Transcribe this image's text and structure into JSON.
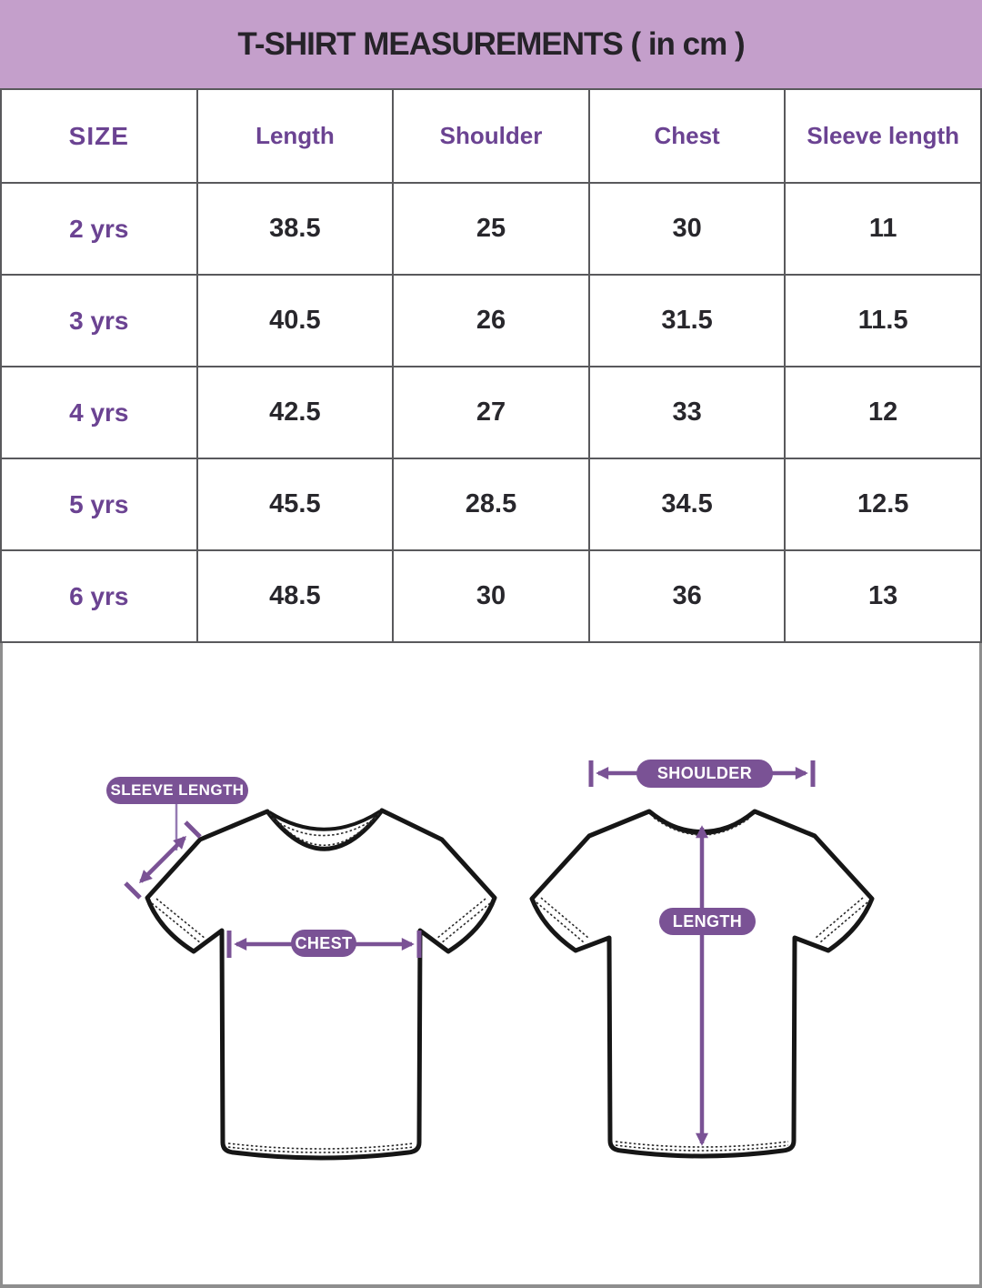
{
  "banner": {
    "title": "T-SHIRT MEASUREMENTS ( in cm )"
  },
  "table": {
    "columns": [
      "SIZE",
      "Length",
      "Shoulder",
      "Chest",
      "Sleeve length"
    ],
    "rows": [
      {
        "label": "2 yrs",
        "values": [
          "38.5",
          "25",
          "30",
          "11"
        ]
      },
      {
        "label": "3 yrs",
        "values": [
          "40.5",
          "26",
          "31.5",
          "11.5"
        ]
      },
      {
        "label": "4 yrs",
        "values": [
          "42.5",
          "27",
          "33",
          "12"
        ]
      },
      {
        "label": "5 yrs",
        "values": [
          "45.5",
          "28.5",
          "34.5",
          "12.5"
        ]
      },
      {
        "label": "6 yrs",
        "values": [
          "48.5",
          "30",
          "36",
          "13"
        ]
      }
    ]
  },
  "diagram": {
    "front": {
      "sleeve_length_label": "SLEEVE LENGTH",
      "chest_label": "CHEST"
    },
    "back": {
      "shoulder_label": "SHOULDER",
      "length_label": "LENGTH"
    }
  },
  "colors": {
    "banner_bg": "#C49FCB",
    "heading_text": "#6B4392",
    "value_text": "#28272C",
    "accent_purple": "#7A5295",
    "grid_border": "#59595C"
  }
}
